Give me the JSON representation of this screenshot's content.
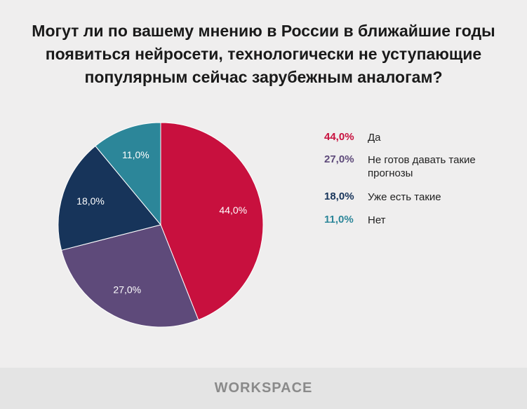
{
  "chart_data": {
    "type": "pie",
    "title": "Могут ли по вашему мнению в России в ближайшие годы появиться нейросети, технологически не уступающие популярным сейчас зарубежным аналогам?",
    "categories": [
      "Да",
      "Не готов давать такие прогнозы",
      "Уже есть такие",
      "Нет"
    ],
    "values": [
      44,
      27,
      18,
      11
    ],
    "value_labels": [
      "44,0%",
      "27,0%",
      "18,0%",
      "11,0%"
    ],
    "colors": [
      "#c8103e",
      "#5e4a7a",
      "#17345a",
      "#2c8699"
    ],
    "legend": "right"
  },
  "footer": "WORKSPACE"
}
